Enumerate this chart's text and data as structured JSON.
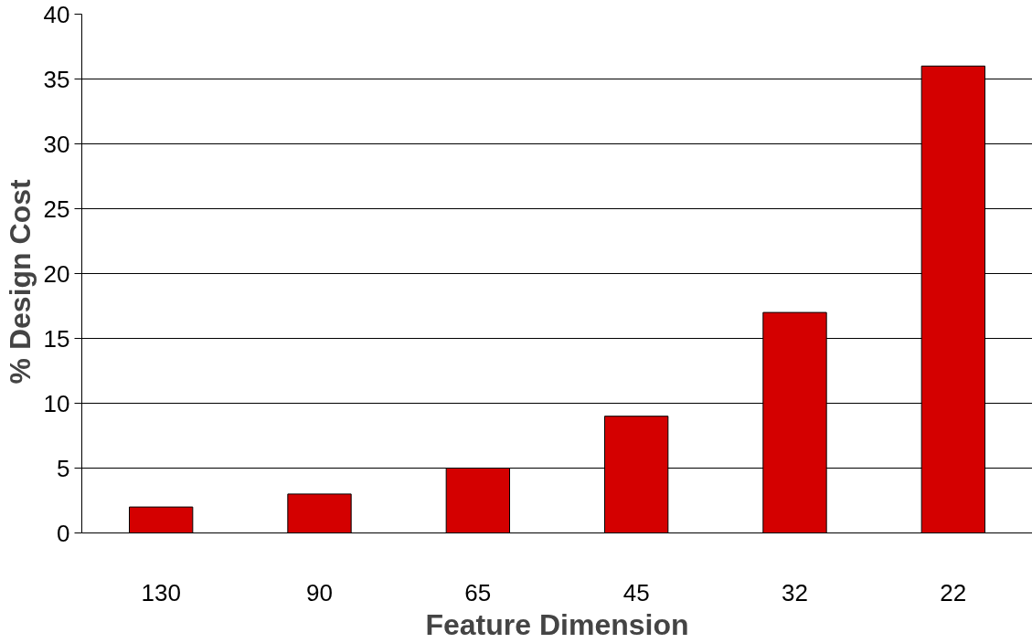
{
  "chart_data": {
    "type": "bar",
    "xlabel": "Feature Dimension",
    "ylabel": "%  Design  Cost",
    "categories": [
      "130",
      "90",
      "65",
      "45",
      "32",
      "22"
    ],
    "values": [
      2,
      3,
      5,
      9,
      17,
      36
    ],
    "color": "#d40000",
    "ylim": [
      0,
      40
    ],
    "yticks": [
      0,
      5,
      10,
      15,
      20,
      25,
      30,
      35,
      40
    ],
    "grid": "y"
  }
}
